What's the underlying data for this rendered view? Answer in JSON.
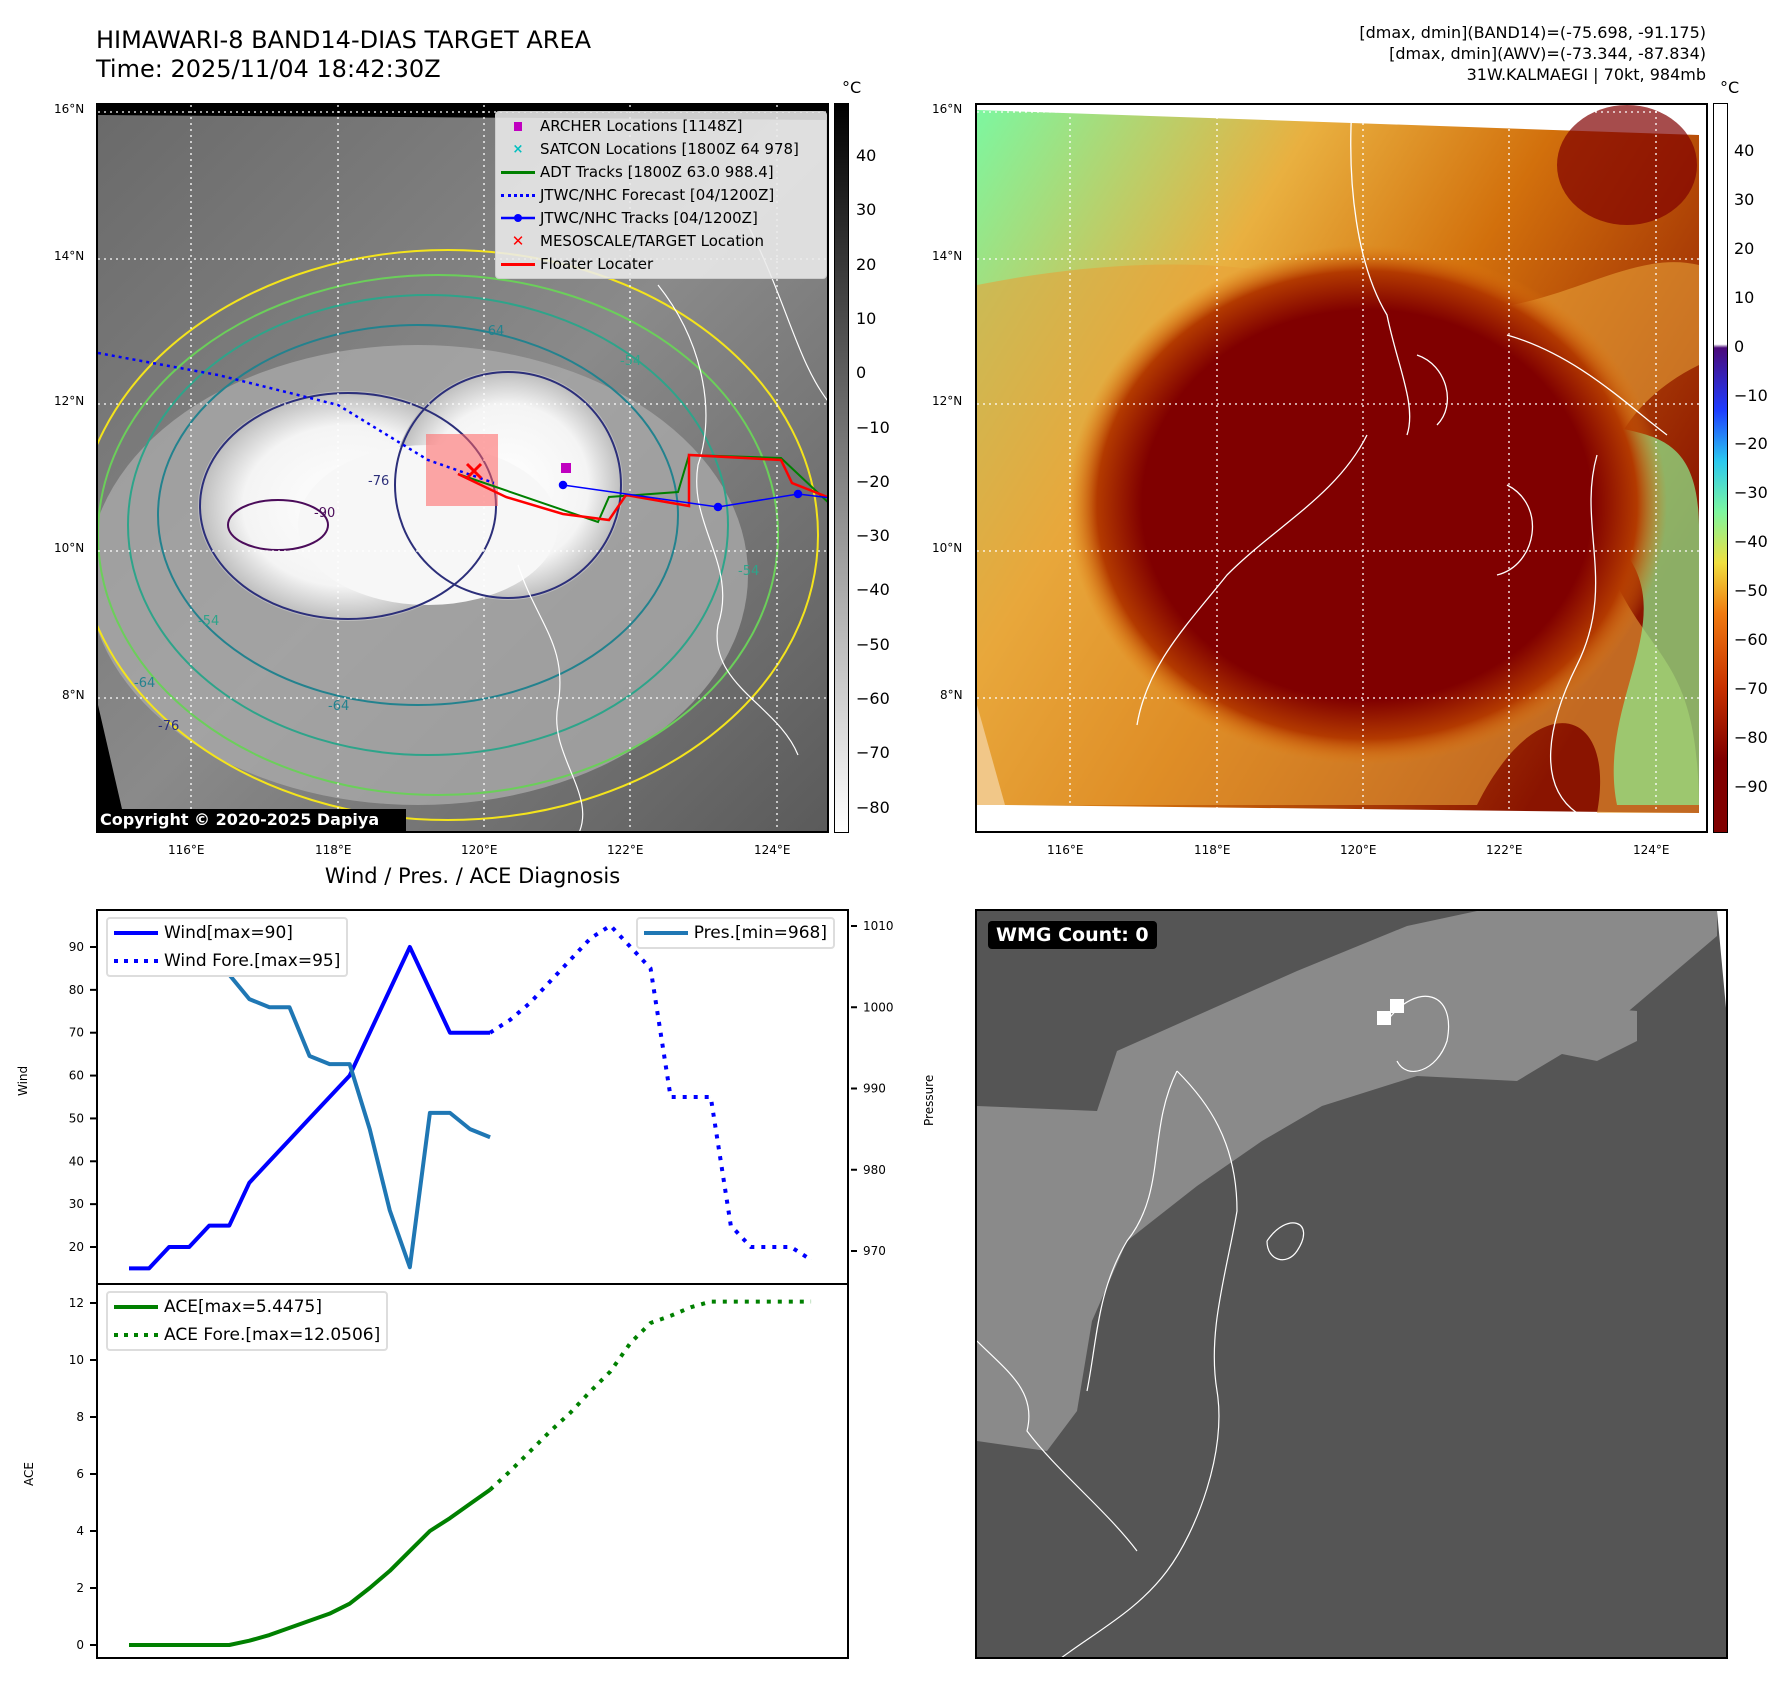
{
  "header": {
    "title_line1": "HIMAWARI-8 BAND14-DIAS TARGET AREA",
    "title_line2": "Time: 2025/11/04 18:42:30Z",
    "info_line1": "[dmax, dmin](BAND14)=(-75.698, -91.175)",
    "info_line2": "[dmax, dmin](AWV)=(-73.344, -87.834)",
    "info_line3": "31W.KALMAEGI | 70kt, 984mb"
  },
  "map_left": {
    "lat_labels": [
      "16°N",
      "14°N",
      "12°N",
      "10°N",
      "8°N"
    ],
    "lon_labels": [
      "116°E",
      "118°E",
      "120°E",
      "122°E",
      "124°E"
    ],
    "colorbar_unit": "°C",
    "colorbar_ticks": [
      "40",
      "30",
      "20",
      "10",
      "0",
      "−10",
      "−20",
      "−30",
      "−40",
      "−50",
      "−60",
      "−70",
      "−80"
    ],
    "contour_labels": [
      "-90",
      "-76",
      "-64",
      "-54",
      "-54",
      "-64",
      "-76",
      "-54",
      "-64"
    ],
    "legend": [
      {
        "label": "ARCHER Locations [1148Z]",
        "icon": "square-marker",
        "color": "#c000c0"
      },
      {
        "label": "SATCON Locations [1800Z 64 978]",
        "icon": "x-marker",
        "color": "#00bfbf"
      },
      {
        "label": "ADT Tracks [1800Z 63.0 988.4]",
        "icon": "solid-line",
        "color": "#008000"
      },
      {
        "label": "JTWC/NHC Forecast [04/1200Z]",
        "icon": "dotted-line",
        "color": "#0000ff"
      },
      {
        "label": "JTWC/NHC Tracks [04/1200Z]",
        "icon": "line-with-dot",
        "color": "#0000ff"
      },
      {
        "label": "MESOSCALE/TARGET Location",
        "icon": "x-marker",
        "color": "#ff0000"
      },
      {
        "label": "Floater Locater",
        "icon": "solid-line",
        "color": "#ff0000"
      }
    ],
    "copyright": "Copyright © 2020-2025 Dapiya"
  },
  "map_right": {
    "lat_labels": [
      "16°N",
      "14°N",
      "12°N",
      "10°N",
      "8°N"
    ],
    "lon_labels": [
      "116°E",
      "118°E",
      "120°E",
      "122°E",
      "124°E"
    ],
    "colorbar_unit": "°C",
    "colorbar_ticks": [
      "40",
      "30",
      "20",
      "10",
      "0",
      "−10",
      "−20",
      "−30",
      "−40",
      "−50",
      "−60",
      "−70",
      "−80",
      "−90"
    ]
  },
  "wmg_panel": {
    "label": "WMG Count: 0"
  },
  "chart_data": [
    {
      "type": "line",
      "title": "Wind / Pres. / ACE Diagnosis",
      "ylabel": "Wind",
      "ylabel_right": "Pressure",
      "ylim": [
        12,
        98
      ],
      "ylim_right": [
        966,
        1012
      ],
      "yticks": [
        "20",
        "30",
        "40",
        "50",
        "60",
        "70",
        "80",
        "90"
      ],
      "yticks_right": [
        "970",
        "980",
        "990",
        "1000",
        "1010"
      ],
      "x": "time step index (6-hourly)",
      "series": [
        {
          "name": "Wind[max=90]",
          "style": "solid",
          "color": "#0000ff",
          "axis": "left",
          "x": [
            0,
            1,
            2,
            3,
            4,
            5,
            6,
            7,
            8,
            9,
            10,
            11,
            12,
            13,
            14,
            15,
            16,
            17,
            18
          ],
          "values": [
            15,
            15,
            20,
            20,
            25,
            25,
            35,
            40,
            45,
            50,
            55,
            60,
            70,
            80,
            90,
            80,
            70,
            70,
            70
          ]
        },
        {
          "name": "Wind Fore.[max=95]",
          "style": "dotted",
          "color": "#0000ff",
          "axis": "left",
          "x": [
            18,
            19,
            20,
            21,
            22,
            23,
            24,
            25,
            26,
            27,
            28,
            29,
            30,
            31,
            32,
            33,
            34
          ],
          "values": [
            70,
            73,
            77,
            82,
            87,
            92,
            95,
            90,
            85,
            55,
            55,
            55,
            25,
            20,
            20,
            20,
            17
          ]
        },
        {
          "name": "Pres.[min=968]",
          "style": "solid",
          "color": "#1f77b4",
          "axis": "right",
          "x": [
            0,
            1,
            2,
            3,
            4,
            5,
            6,
            7,
            8,
            9,
            10,
            11,
            12,
            13,
            14,
            15,
            16,
            17,
            18
          ],
          "values": [
            1010,
            1008,
            1008,
            1008,
            1007,
            1004,
            1001,
            1000,
            1000,
            994,
            993,
            993,
            985,
            975,
            968,
            987,
            987,
            985,
            984
          ]
        }
      ],
      "legend_left": [
        "Wind[max=90]",
        "Wind Fore.[max=95]"
      ],
      "legend_right": [
        "Pres.[min=968]"
      ]
    },
    {
      "type": "line",
      "ylabel": "ACE",
      "ylim": [
        -0.6,
        12.6
      ],
      "yticks": [
        "0",
        "2",
        "4",
        "6",
        "8",
        "10",
        "12"
      ],
      "series": [
        {
          "name": "ACE[max=5.4475]",
          "style": "solid",
          "color": "#008000",
          "x": [
            0,
            1,
            2,
            3,
            4,
            5,
            6,
            7,
            8,
            9,
            10,
            11,
            12,
            13,
            14,
            15,
            16,
            17,
            18
          ],
          "values": [
            0,
            0,
            0,
            0,
            0,
            0,
            0.15,
            0.35,
            0.6,
            0.85,
            1.1,
            1.45,
            2.0,
            2.6,
            3.3,
            4.0,
            4.45,
            4.95,
            5.4475
          ]
        },
        {
          "name": "ACE Fore.[max=12.0506]",
          "style": "dotted",
          "color": "#008000",
          "x": [
            18,
            19,
            20,
            21,
            22,
            23,
            24,
            25,
            26,
            27,
            28,
            29,
            30,
            31,
            32,
            33,
            34
          ],
          "values": [
            5.4475,
            6.1,
            6.8,
            7.5,
            8.15,
            8.9,
            9.6,
            10.6,
            11.3,
            11.55,
            11.85,
            12.05,
            12.05,
            12.05,
            12.05,
            12.05,
            12.0506
          ]
        }
      ],
      "legend": [
        "ACE[max=5.4475]",
        "ACE Fore.[max=12.0506]"
      ]
    }
  ]
}
